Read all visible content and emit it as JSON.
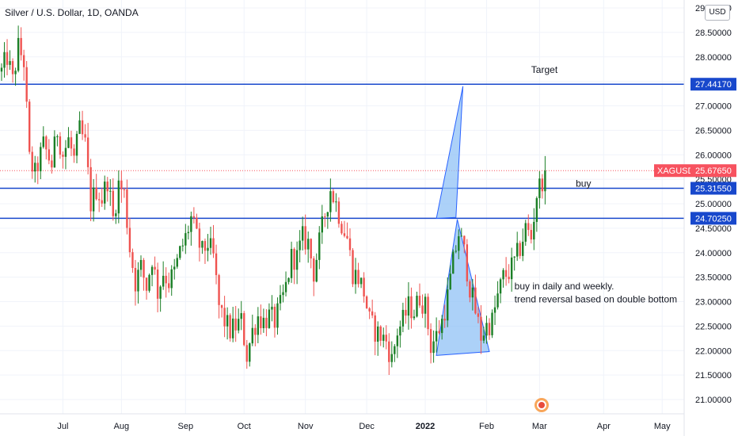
{
  "title": "Silver / U.S. Dollar, 1D, OANDA",
  "currency_badge": "USD",
  "chart_data": {
    "type": "candlestick",
    "title": "Silver / U.S. Dollar, 1D, OANDA",
    "symbol": "XAGUSD",
    "ylim": [
      20.8,
      29.0
    ],
    "y_ticks": [
      "29.00000",
      "28.50000",
      "28.00000",
      "27.50000",
      "27.00000",
      "26.50000",
      "26.00000",
      "25.50000",
      "25.00000",
      "24.50000",
      "24.00000",
      "23.50000",
      "23.00000",
      "22.50000",
      "22.00000",
      "21.50000",
      "21.00000"
    ],
    "y_tick_values": [
      29.0,
      28.5,
      28.0,
      27.5,
      27.0,
      26.5,
      26.0,
      25.5,
      25.0,
      24.5,
      24.0,
      23.5,
      23.0,
      22.5,
      22.0,
      21.5,
      21.0
    ],
    "x_ticks": [
      {
        "label": "Jul",
        "index": 22,
        "bold": false
      },
      {
        "label": "Aug",
        "index": 43,
        "bold": false
      },
      {
        "label": "Sep",
        "index": 66,
        "bold": false
      },
      {
        "label": "Oct",
        "index": 87,
        "bold": false
      },
      {
        "label": "Nov",
        "index": 109,
        "bold": false
      },
      {
        "label": "Dec",
        "index": 131,
        "bold": false
      },
      {
        "label": "2022",
        "index": 152,
        "bold": true
      },
      {
        "label": "Feb",
        "index": 174,
        "bold": false
      },
      {
        "label": "Mar",
        "index": 193,
        "bold": false
      },
      {
        "label": "Apr",
        "index": 216,
        "bold": false
      },
      {
        "label": "May",
        "index": 237,
        "bold": false
      }
    ],
    "x_slots": 270,
    "up_color": "#26a69a",
    "up_color_dark": "#1b7f26",
    "down_color": "#ef5350",
    "line_color": "#1848cc",
    "shape_fill": "#90c2f5",
    "shape_stroke": "#2962ff",
    "price_line_color": "#f7525f",
    "last_price": 25.6765,
    "last_price_label": "25.67650",
    "horizontal_levels": [
      {
        "value": 27.4417,
        "label": "27.44170"
      },
      {
        "value": 25.3155,
        "label": "25.31550"
      },
      {
        "value": 24.7025,
        "label": "24.70250"
      }
    ],
    "annotations": [
      {
        "text": "Target",
        "x_index": 190,
        "y": 27.67
      },
      {
        "text": "buy",
        "x_index": 206,
        "y": 25.35
      },
      {
        "text": "buy in daily and weekly.",
        "x_index": 184,
        "y": 23.25
      },
      {
        "text": "trend reversal based on double bottom",
        "x_index": 184,
        "y": 22.98
      }
    ],
    "triangles": [
      {
        "points": [
          [
            156,
            24.7
          ],
          [
            163,
            24.72
          ],
          [
            165.5,
            27.4
          ]
        ]
      },
      {
        "points": [
          [
            156,
            21.9
          ],
          [
            175,
            21.98
          ],
          [
            163.5,
            24.68
          ]
        ]
      }
    ],
    "anchors": [
      [
        0,
        27.7
      ],
      [
        2,
        28.0
      ],
      [
        4,
        27.5
      ],
      [
        6,
        28.2
      ],
      [
        8,
        27.9
      ],
      [
        10,
        25.9
      ],
      [
        12,
        25.6
      ],
      [
        15,
        26.2
      ],
      [
        18,
        25.8
      ],
      [
        20,
        26.5
      ],
      [
        22,
        26.0
      ],
      [
        24,
        26.3
      ],
      [
        26,
        25.9
      ],
      [
        28,
        26.5
      ],
      [
        30,
        26.2
      ],
      [
        32,
        25.0
      ],
      [
        34,
        25.3
      ],
      [
        36,
        25.1
      ],
      [
        38,
        25.5
      ],
      [
        40,
        24.7
      ],
      [
        42,
        25.4
      ],
      [
        44,
        25.2
      ],
      [
        46,
        24.1
      ],
      [
        48,
        23.4
      ],
      [
        50,
        23.7
      ],
      [
        52,
        23.3
      ],
      [
        54,
        23.9
      ],
      [
        56,
        23.2
      ],
      [
        58,
        23.6
      ],
      [
        60,
        23.4
      ],
      [
        62,
        23.6
      ],
      [
        64,
        24.0
      ],
      [
        66,
        24.3
      ],
      [
        68,
        24.7
      ],
      [
        70,
        24.3
      ],
      [
        72,
        24.0
      ],
      [
        74,
        24.2
      ],
      [
        76,
        23.9
      ],
      [
        78,
        22.9
      ],
      [
        80,
        22.6
      ],
      [
        82,
        22.4
      ],
      [
        84,
        22.5
      ],
      [
        86,
        22.6
      ],
      [
        88,
        21.9
      ],
      [
        90,
        22.4
      ],
      [
        92,
        22.7
      ],
      [
        94,
        22.6
      ],
      [
        96,
        22.7
      ],
      [
        98,
        22.6
      ],
      [
        100,
        22.9
      ],
      [
        102,
        23.3
      ],
      [
        104,
        23.9
      ],
      [
        106,
        23.9
      ],
      [
        108,
        24.3
      ],
      [
        110,
        24.2
      ],
      [
        112,
        23.6
      ],
      [
        114,
        24.2
      ],
      [
        116,
        24.8
      ],
      [
        118,
        25.3
      ],
      [
        120,
        25.0
      ],
      [
        122,
        24.6
      ],
      [
        124,
        24.3
      ],
      [
        126,
        23.6
      ],
      [
        128,
        23.5
      ],
      [
        130,
        23.2
      ],
      [
        132,
        22.6
      ],
      [
        134,
        22.4
      ],
      [
        136,
        22.3
      ],
      [
        138,
        22.2
      ],
      [
        140,
        21.8
      ],
      [
        142,
        22.4
      ],
      [
        144,
        22.6
      ],
      [
        146,
        22.9
      ],
      [
        148,
        22.8
      ],
      [
        150,
        23.1
      ],
      [
        152,
        22.9
      ],
      [
        154,
        22.1
      ],
      [
        156,
        22.3
      ],
      [
        158,
        22.6
      ],
      [
        160,
        23.1
      ],
      [
        162,
        23.8
      ],
      [
        164,
        24.4
      ],
      [
        166,
        24.0
      ],
      [
        168,
        23.3
      ],
      [
        170,
        22.8
      ],
      [
        172,
        22.3
      ],
      [
        174,
        22.5
      ],
      [
        176,
        22.6
      ],
      [
        178,
        23.1
      ],
      [
        180,
        23.5
      ],
      [
        182,
        23.6
      ],
      [
        184,
        23.8
      ],
      [
        186,
        24.1
      ],
      [
        188,
        24.5
      ],
      [
        190,
        24.3
      ],
      [
        192,
        25.2
      ],
      [
        194,
        25.5
      ],
      [
        195,
        25.68
      ]
    ]
  }
}
